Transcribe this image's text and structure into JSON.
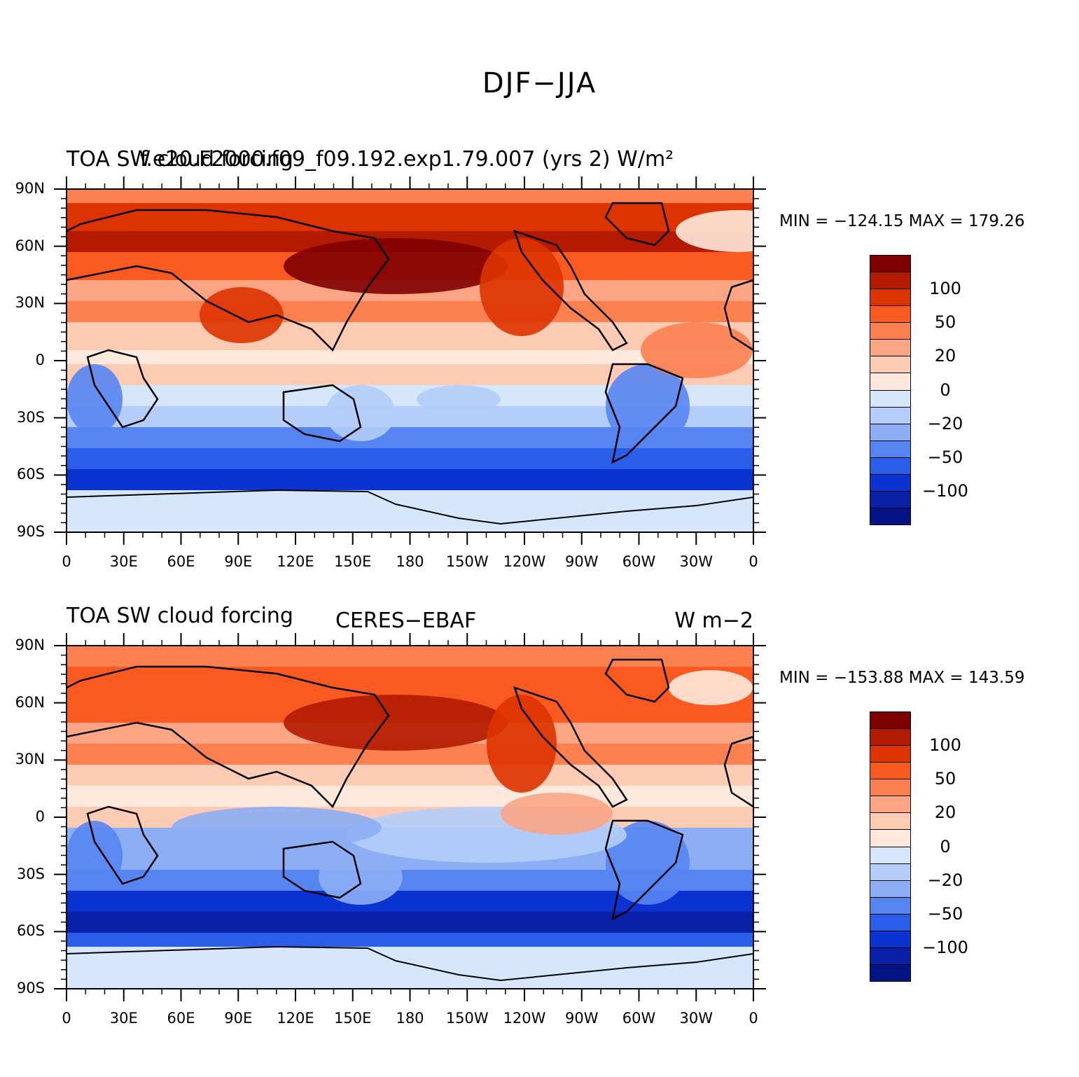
{
  "title": "DJF−JJA",
  "panels": [
    {
      "left": "TOA SW cloud forcing",
      "center": "f.e20.F2000.f09_f09.192.exp1.79.007 (yrs 2) W/m²",
      "right": "",
      "minmax": "MIN = −124.15  MAX = 179.26"
    },
    {
      "left": "TOA SW cloud forcing",
      "center": "CERES−EBAF",
      "right": "W m−2",
      "minmax": "MIN = −153.88  MAX = 143.59"
    }
  ],
  "lat_labels": [
    "90N",
    "60N",
    "30N",
    "0",
    "30S",
    "60S",
    "90S"
  ],
  "lon_labels": [
    "0",
    "30E",
    "60E",
    "90E",
    "120E",
    "150E",
    "180",
    "150W",
    "120W",
    "90W",
    "60W",
    "30W",
    "0"
  ],
  "colorbar": {
    "colors": [
      "#7f0000",
      "#b31a00",
      "#dd3300",
      "#fa5a1f",
      "#fb8050",
      "#fba585",
      "#fdcab3",
      "#fee9dc",
      "#d6e6fb",
      "#b4cdfa",
      "#8caef5",
      "#5685f2",
      "#2a5de8",
      "#0b33d2",
      "#0a20a6",
      "#041487"
    ],
    "labels": [
      "100",
      "50",
      "20",
      "0",
      "−20",
      "−50",
      "−100"
    ]
  },
  "chart_data": {
    "type": "heatmap",
    "title": "DJF−JJA",
    "units": "W/m²",
    "xlabel": "",
    "ylabel": "",
    "x_ticks": [
      "0",
      "30E",
      "60E",
      "90E",
      "120E",
      "150E",
      "180",
      "150W",
      "120W",
      "90W",
      "60W",
      "30W",
      "0"
    ],
    "y_ticks": [
      "90N",
      "60N",
      "30N",
      "0",
      "30S",
      "60S",
      "90S"
    ],
    "colorbar_levels": [
      "100",
      "50",
      "20",
      "0",
      "−20",
      "−50",
      "−100"
    ],
    "maps": [
      {
        "name": "f.e20.F2000.f09_f09.192.exp1.79.007 (yrs 2)",
        "min": -124.15,
        "max": 179.26
      },
      {
        "name": "CERES−EBAF",
        "min": -153.88,
        "max": 143.59
      }
    ]
  }
}
